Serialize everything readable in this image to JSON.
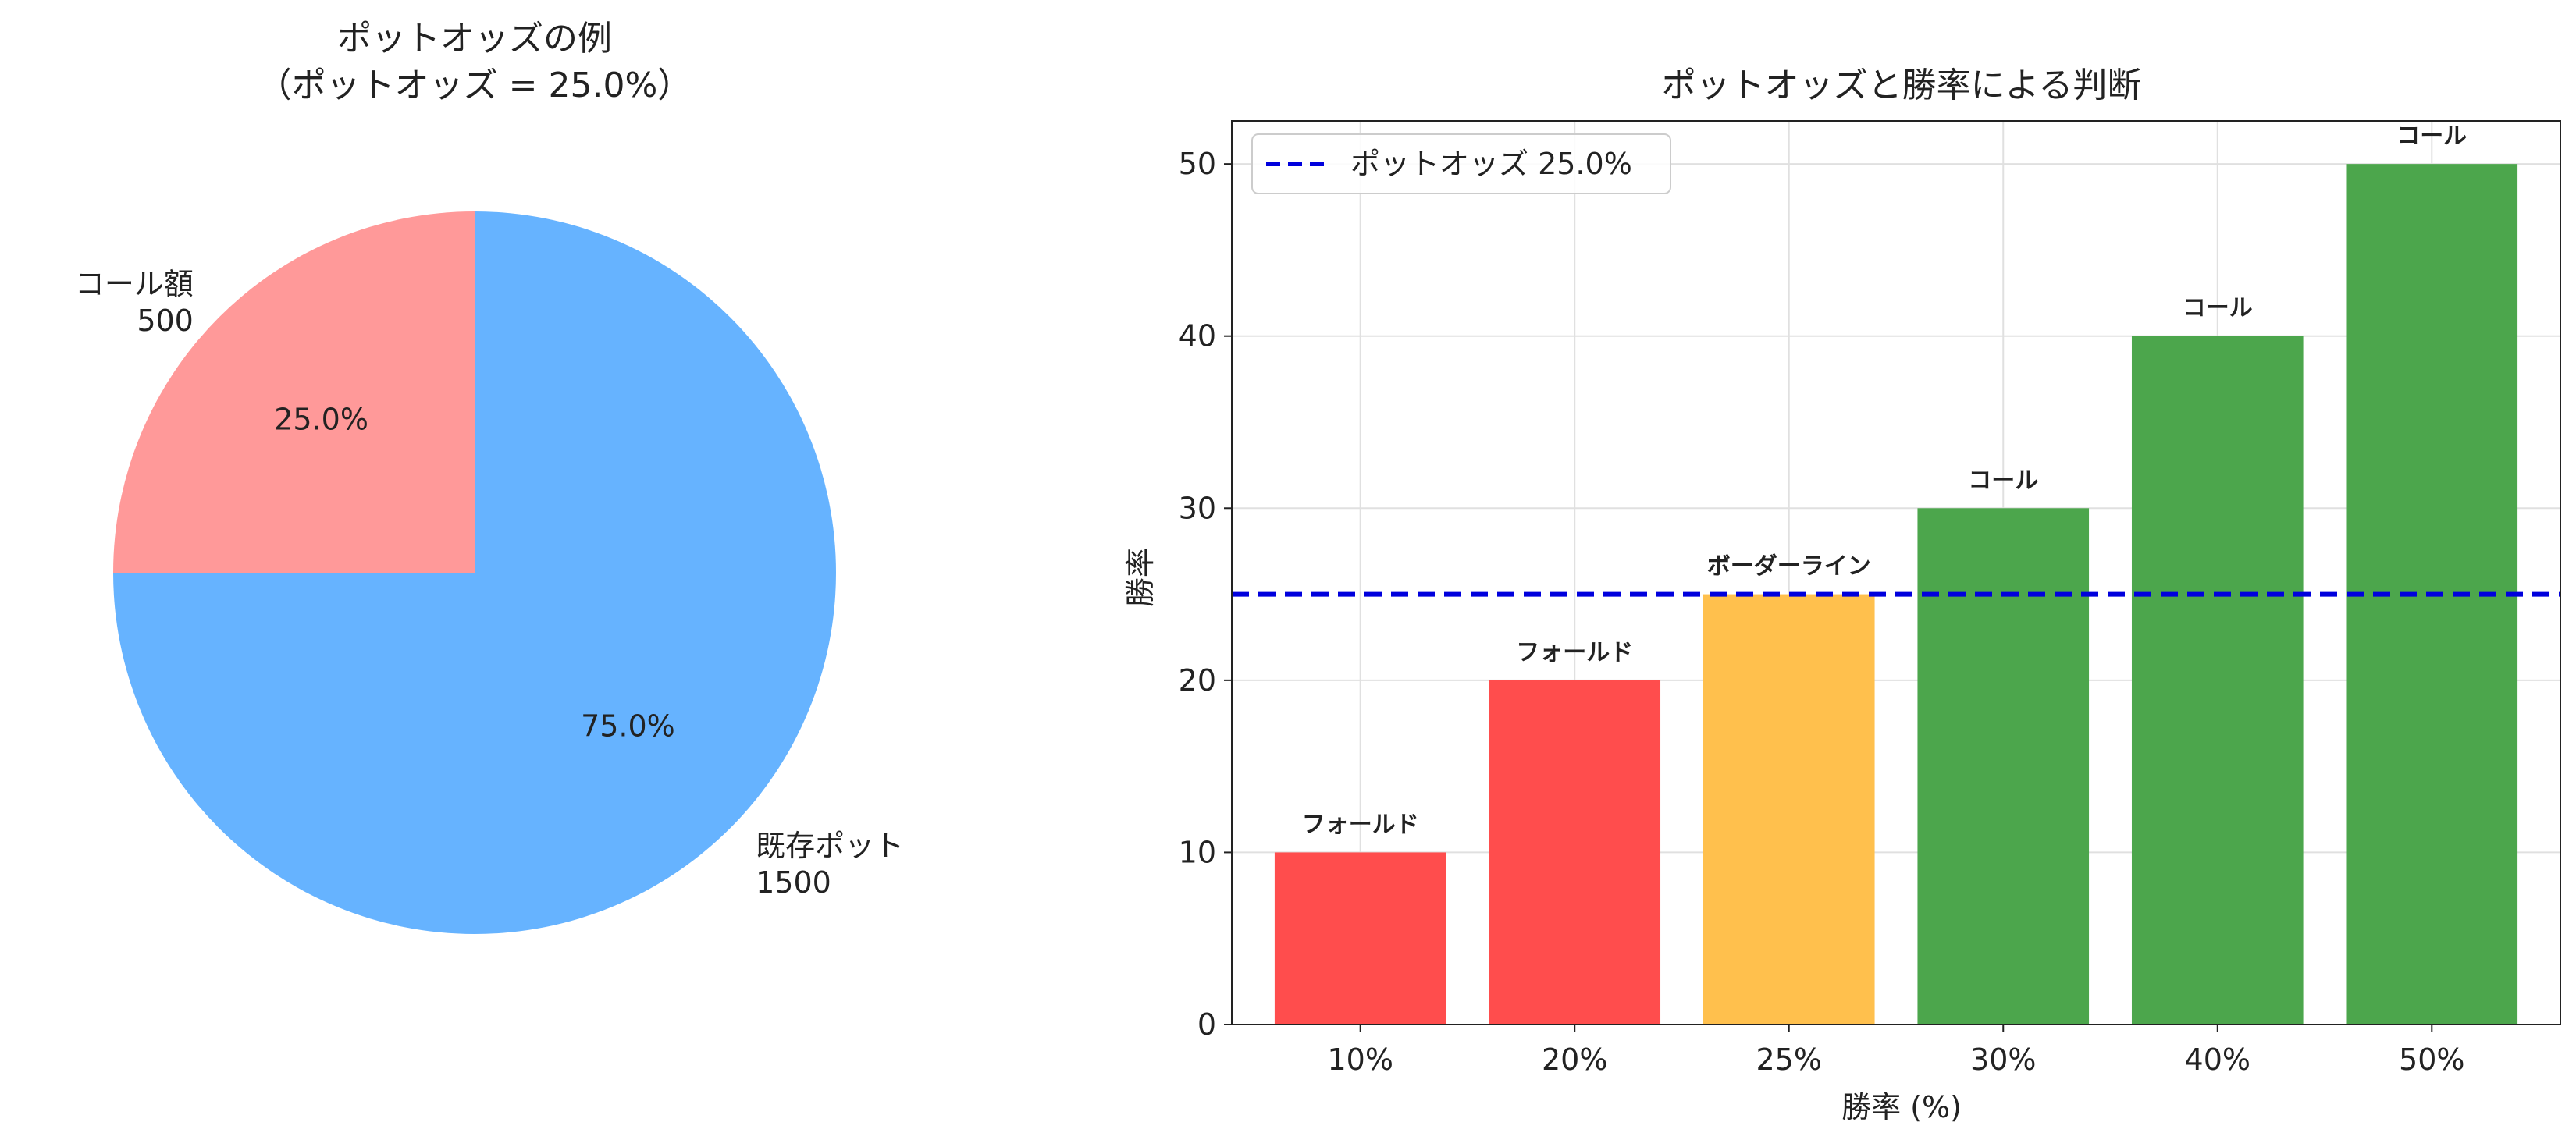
{
  "chart_data": [
    {
      "type": "pie",
      "title": "ポットオッズの例",
      "subtitle": "（ポットオッズ = 25.0%）",
      "slices": [
        {
          "label": "コール額",
          "value": 500,
          "value_text": "500",
          "percent_text": "25.0%",
          "color": "#ff9999"
        },
        {
          "label": "既存ポット",
          "value": 1500,
          "value_text": "1500",
          "percent_text": "75.0%",
          "color": "#66b3ff"
        }
      ],
      "start_angle": 90,
      "direction": "counterclockwise"
    },
    {
      "type": "bar",
      "title": "ポットオッズと勝率による判断",
      "xlabel": "勝率 (%)",
      "ylabel": "勝率",
      "categories": [
        "10%",
        "20%",
        "25%",
        "30%",
        "40%",
        "50%"
      ],
      "values": [
        10,
        20,
        25,
        30,
        40,
        50
      ],
      "bar_labels": [
        "フォールド",
        "フォールド",
        "ボーダーライン",
        "コール",
        "コール",
        "コール"
      ],
      "bar_colors": [
        "#ff4d4d",
        "#ff4d4d",
        "#ffc04d",
        "#4ca64c",
        "#4ca64c",
        "#4ca64c"
      ],
      "ylim": [
        0,
        52.5
      ],
      "yticks": [
        0,
        10,
        20,
        30,
        40,
        50
      ],
      "grid": true,
      "reference_line": {
        "y": 25,
        "label": "ポットオッズ 25.0%",
        "color": "#0000dd",
        "style": "dashed"
      },
      "legend_position": "upper-left"
    }
  ]
}
